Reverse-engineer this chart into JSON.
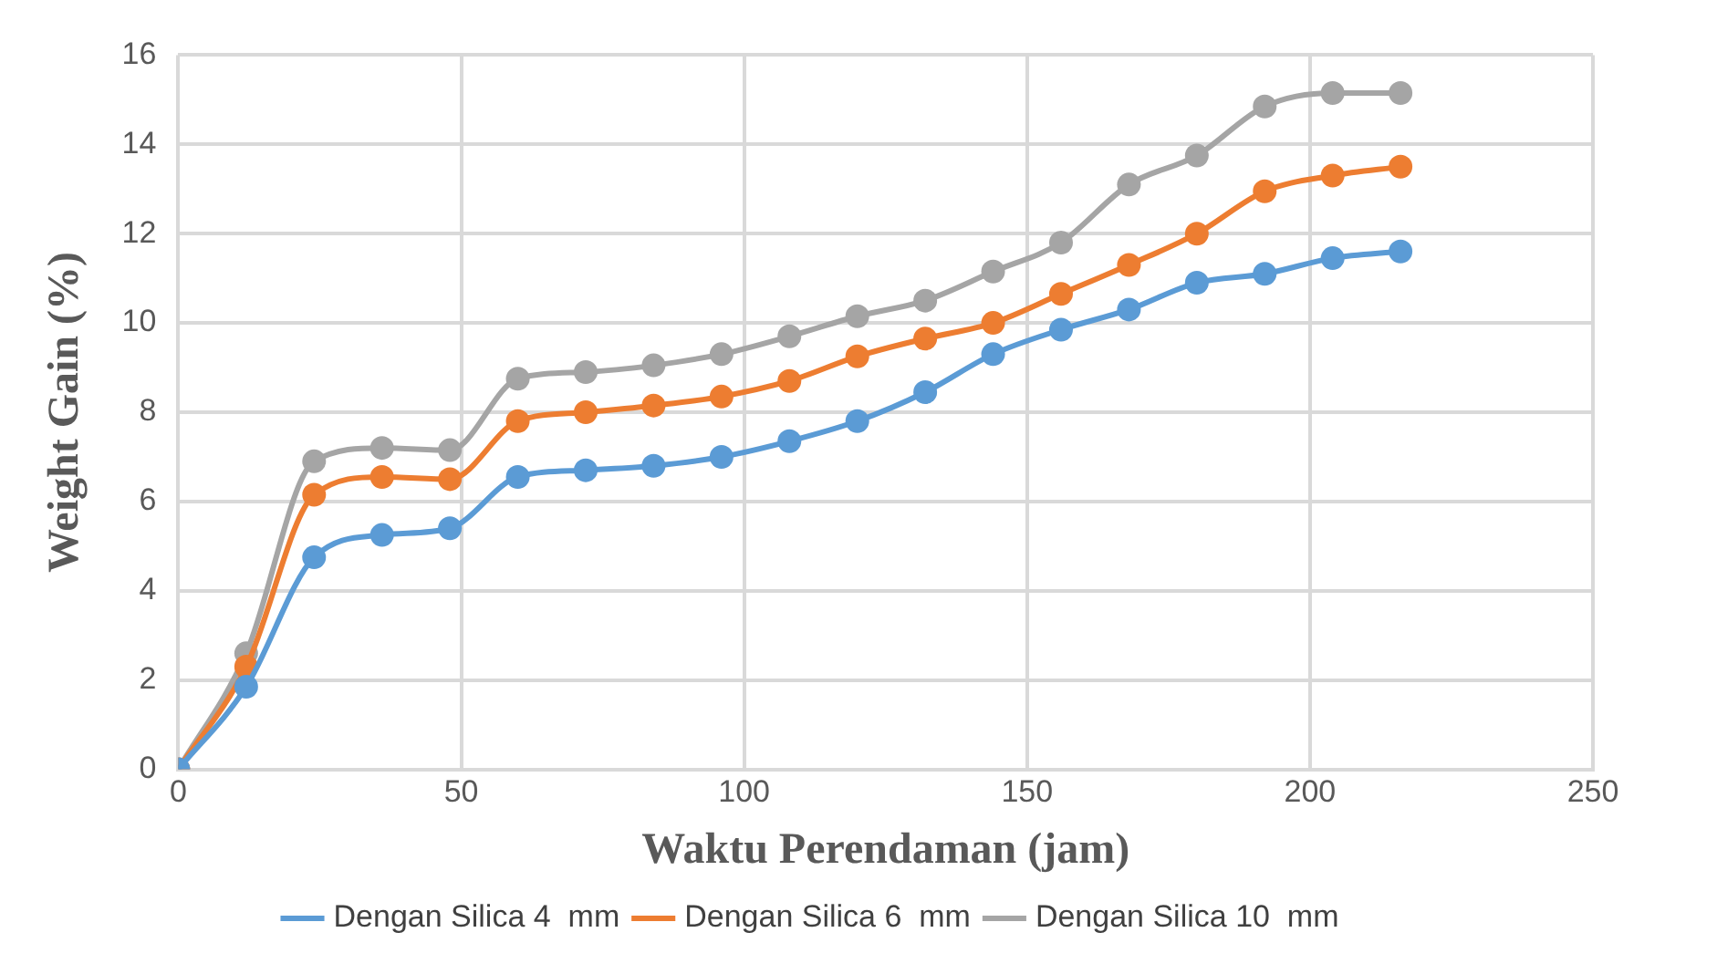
{
  "chart_data": {
    "type": "line",
    "xlabel": "Waktu Perendaman (jam)",
    "ylabel": "Weight Gain (%)",
    "x": [
      0,
      12,
      24,
      36,
      48,
      60,
      72,
      84,
      96,
      108,
      120,
      132,
      144,
      156,
      168,
      180,
      192,
      204,
      216
    ],
    "series": [
      {
        "name": "Dengan Silica 4  mm",
        "color": "#5b9bd5",
        "values": [
          0,
          1.85,
          4.75,
          5.25,
          5.4,
          6.55,
          6.7,
          6.8,
          7.0,
          7.35,
          7.8,
          8.45,
          9.3,
          9.85,
          10.3,
          10.9,
          11.1,
          11.45,
          11.6
        ]
      },
      {
        "name": "Dengan Silica 6  mm",
        "color": "#ed7d31",
        "values": [
          0,
          2.3,
          6.15,
          6.55,
          6.5,
          7.8,
          8.0,
          8.15,
          8.35,
          8.7,
          9.25,
          9.65,
          10.0,
          10.65,
          11.3,
          12.0,
          12.95,
          13.3,
          13.5
        ]
      },
      {
        "name": "Dengan Silica 10  mm",
        "color": "#a5a5a5",
        "values": [
          0,
          2.6,
          6.9,
          7.2,
          7.15,
          8.75,
          8.9,
          9.05,
          9.3,
          9.7,
          10.15,
          10.5,
          11.15,
          11.8,
          13.1,
          13.75,
          14.85,
          15.15,
          15.15
        ]
      }
    ],
    "xlim": [
      0,
      250
    ],
    "xticks": [
      0,
      50,
      100,
      150,
      200,
      250
    ],
    "ylim": [
      0,
      16
    ],
    "yticks": [
      0,
      2,
      4,
      6,
      8,
      10,
      12,
      14,
      16
    ],
    "grid": true,
    "legend": "bottom",
    "marker": "circle",
    "line_style": "solid"
  }
}
